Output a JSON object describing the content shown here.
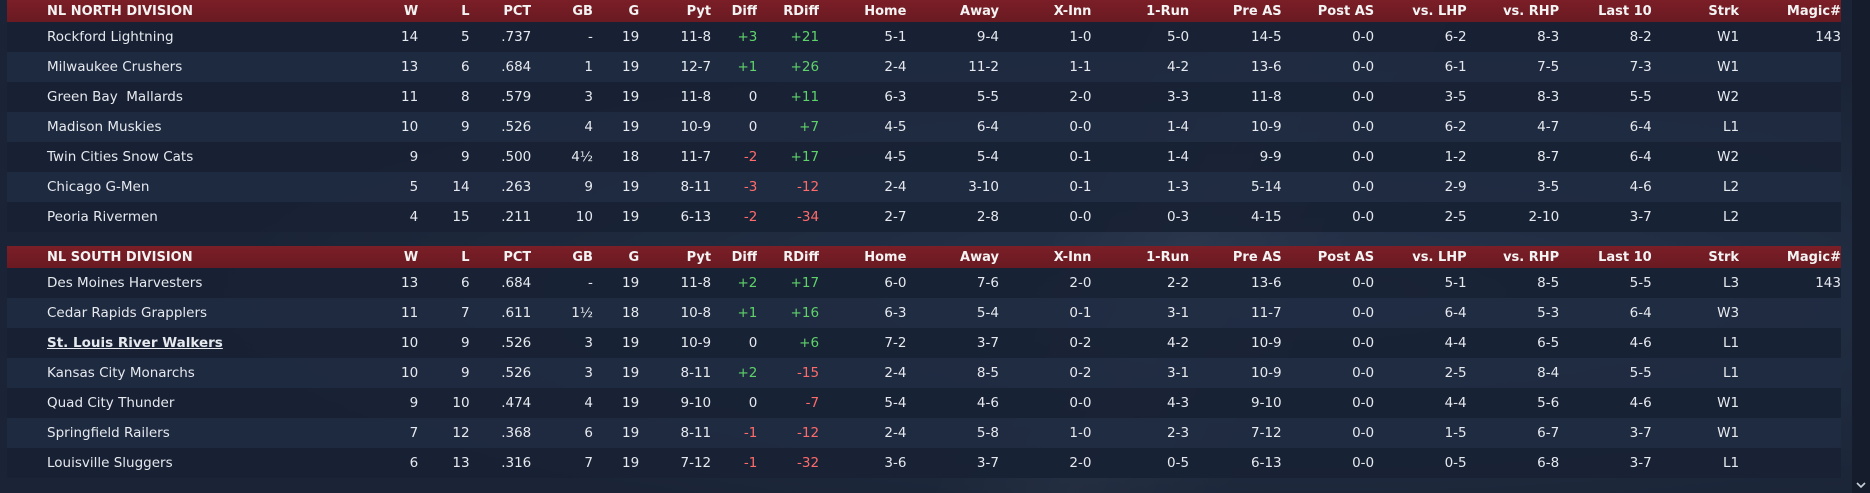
{
  "columns": [
    "W",
    "L",
    "PCT",
    "GB",
    "G",
    "Pyt",
    "Diff",
    "RDiff",
    "Home",
    "Away",
    "X-Inn",
    "1-Run",
    "Pre AS",
    "Post AS",
    "vs. LHP",
    "vs. RHP",
    "Last 10",
    "Strk",
    "Magic#"
  ],
  "divisions": [
    {
      "name": "NL NORTH DIVISION",
      "teams": [
        {
          "team": "Rockford Lightning",
          "w": "14",
          "l": "5",
          "pct": ".737",
          "gb": "-",
          "g": "19",
          "pyt": "11-8",
          "diff": "+3",
          "rdiff": "+21",
          "home": "5-1",
          "away": "9-4",
          "xinn": "1-0",
          "onerun": "5-0",
          "preas": "14-5",
          "postas": "0-0",
          "lhp": "6-2",
          "rhp": "8-3",
          "last10": "8-2",
          "strk": "W1",
          "magic": "143"
        },
        {
          "team": "Milwaukee Crushers",
          "w": "13",
          "l": "6",
          "pct": ".684",
          "gb": "1",
          "g": "19",
          "pyt": "12-7",
          "diff": "+1",
          "rdiff": "+26",
          "home": "2-4",
          "away": "11-2",
          "xinn": "1-1",
          "onerun": "4-2",
          "preas": "13-6",
          "postas": "0-0",
          "lhp": "6-1",
          "rhp": "7-5",
          "last10": "7-3",
          "strk": "W1",
          "magic": ""
        },
        {
          "team": "Green Bay  Mallards",
          "w": "11",
          "l": "8",
          "pct": ".579",
          "gb": "3",
          "g": "19",
          "pyt": "11-8",
          "diff": "0",
          "rdiff": "+11",
          "home": "6-3",
          "away": "5-5",
          "xinn": "2-0",
          "onerun": "3-3",
          "preas": "11-8",
          "postas": "0-0",
          "lhp": "3-5",
          "rhp": "8-3",
          "last10": "5-5",
          "strk": "W2",
          "magic": ""
        },
        {
          "team": "Madison Muskies",
          "w": "10",
          "l": "9",
          "pct": ".526",
          "gb": "4",
          "g": "19",
          "pyt": "10-9",
          "diff": "0",
          "rdiff": "+7",
          "home": "4-5",
          "away": "6-4",
          "xinn": "0-0",
          "onerun": "1-4",
          "preas": "10-9",
          "postas": "0-0",
          "lhp": "6-2",
          "rhp": "4-7",
          "last10": "6-4",
          "strk": "L1",
          "magic": ""
        },
        {
          "team": "Twin Cities Snow Cats",
          "w": "9",
          "l": "9",
          "pct": ".500",
          "gb": "4½",
          "g": "18",
          "pyt": "11-7",
          "diff": "-2",
          "rdiff": "+17",
          "home": "4-5",
          "away": "5-4",
          "xinn": "0-1",
          "onerun": "1-4",
          "preas": "9-9",
          "postas": "0-0",
          "lhp": "1-2",
          "rhp": "8-7",
          "last10": "6-4",
          "strk": "W2",
          "magic": ""
        },
        {
          "team": "Chicago G-Men",
          "w": "5",
          "l": "14",
          "pct": ".263",
          "gb": "9",
          "g": "19",
          "pyt": "8-11",
          "diff": "-3",
          "rdiff": "-12",
          "home": "2-4",
          "away": "3-10",
          "xinn": "0-1",
          "onerun": "1-3",
          "preas": "5-14",
          "postas": "0-0",
          "lhp": "2-9",
          "rhp": "3-5",
          "last10": "4-6",
          "strk": "L2",
          "magic": ""
        },
        {
          "team": "Peoria Rivermen",
          "w": "4",
          "l": "15",
          "pct": ".211",
          "gb": "10",
          "g": "19",
          "pyt": "6-13",
          "diff": "-2",
          "rdiff": "-34",
          "home": "2-7",
          "away": "2-8",
          "xinn": "0-0",
          "onerun": "0-3",
          "preas": "4-15",
          "postas": "0-0",
          "lhp": "2-5",
          "rhp": "2-10",
          "last10": "3-7",
          "strk": "L2",
          "magic": ""
        }
      ]
    },
    {
      "name": "NL SOUTH DIVISION",
      "teams": [
        {
          "team": "Des Moines Harvesters",
          "w": "13",
          "l": "6",
          "pct": ".684",
          "gb": "-",
          "g": "19",
          "pyt": "11-8",
          "diff": "+2",
          "rdiff": "+17",
          "home": "6-0",
          "away": "7-6",
          "xinn": "2-0",
          "onerun": "2-2",
          "preas": "13-6",
          "postas": "0-0",
          "lhp": "5-1",
          "rhp": "8-5",
          "last10": "5-5",
          "strk": "L3",
          "magic": "143"
        },
        {
          "team": "Cedar Rapids Grapplers",
          "w": "11",
          "l": "7",
          "pct": ".611",
          "gb": "1½",
          "g": "18",
          "pyt": "10-8",
          "diff": "+1",
          "rdiff": "+16",
          "home": "6-3",
          "away": "5-4",
          "xinn": "0-1",
          "onerun": "3-1",
          "preas": "11-7",
          "postas": "0-0",
          "lhp": "6-4",
          "rhp": "5-3",
          "last10": "6-4",
          "strk": "W3",
          "magic": ""
        },
        {
          "team": "St. Louis River Walkers",
          "w": "10",
          "l": "9",
          "pct": ".526",
          "gb": "3",
          "g": "19",
          "pyt": "10-9",
          "diff": "0",
          "rdiff": "+6",
          "home": "7-2",
          "away": "3-7",
          "xinn": "0-2",
          "onerun": "4-2",
          "preas": "10-9",
          "postas": "0-0",
          "lhp": "4-4",
          "rhp": "6-5",
          "last10": "4-6",
          "strk": "L1",
          "magic": "",
          "link": true
        },
        {
          "team": "Kansas City Monarchs",
          "w": "10",
          "l": "9",
          "pct": ".526",
          "gb": "3",
          "g": "19",
          "pyt": "8-11",
          "diff": "+2",
          "rdiff": "-15",
          "home": "2-4",
          "away": "8-5",
          "xinn": "0-2",
          "onerun": "3-1",
          "preas": "10-9",
          "postas": "0-0",
          "lhp": "2-5",
          "rhp": "8-4",
          "last10": "5-5",
          "strk": "L1",
          "magic": ""
        },
        {
          "team": "Quad City Thunder",
          "w": "9",
          "l": "10",
          "pct": ".474",
          "gb": "4",
          "g": "19",
          "pyt": "9-10",
          "diff": "0",
          "rdiff": "-7",
          "home": "5-4",
          "away": "4-6",
          "xinn": "0-0",
          "onerun": "4-3",
          "preas": "9-10",
          "postas": "0-0",
          "lhp": "4-4",
          "rhp": "5-6",
          "last10": "4-6",
          "strk": "W1",
          "magic": ""
        },
        {
          "team": "Springfield Railers",
          "w": "7",
          "l": "12",
          "pct": ".368",
          "gb": "6",
          "g": "19",
          "pyt": "8-11",
          "diff": "-1",
          "rdiff": "-12",
          "home": "2-4",
          "away": "5-8",
          "xinn": "1-0",
          "onerun": "2-3",
          "preas": "7-12",
          "postas": "0-0",
          "lhp": "1-5",
          "rhp": "6-7",
          "last10": "3-7",
          "strk": "W1",
          "magic": ""
        },
        {
          "team": "Louisville Sluggers",
          "w": "6",
          "l": "13",
          "pct": ".316",
          "gb": "7",
          "g": "19",
          "pyt": "7-12",
          "diff": "-1",
          "rdiff": "-32",
          "home": "3-6",
          "away": "3-7",
          "xinn": "2-0",
          "onerun": "0-5",
          "preas": "6-13",
          "postas": "0-0",
          "lhp": "0-5",
          "rhp": "6-8",
          "last10": "3-7",
          "strk": "L1",
          "magic": ""
        }
      ]
    }
  ],
  "colors": {
    "header": "#7b1e27",
    "positive": "#5fd36a",
    "negative": "#ff6b6b"
  },
  "icons": {
    "scroll_down": "chevron-down-icon"
  }
}
